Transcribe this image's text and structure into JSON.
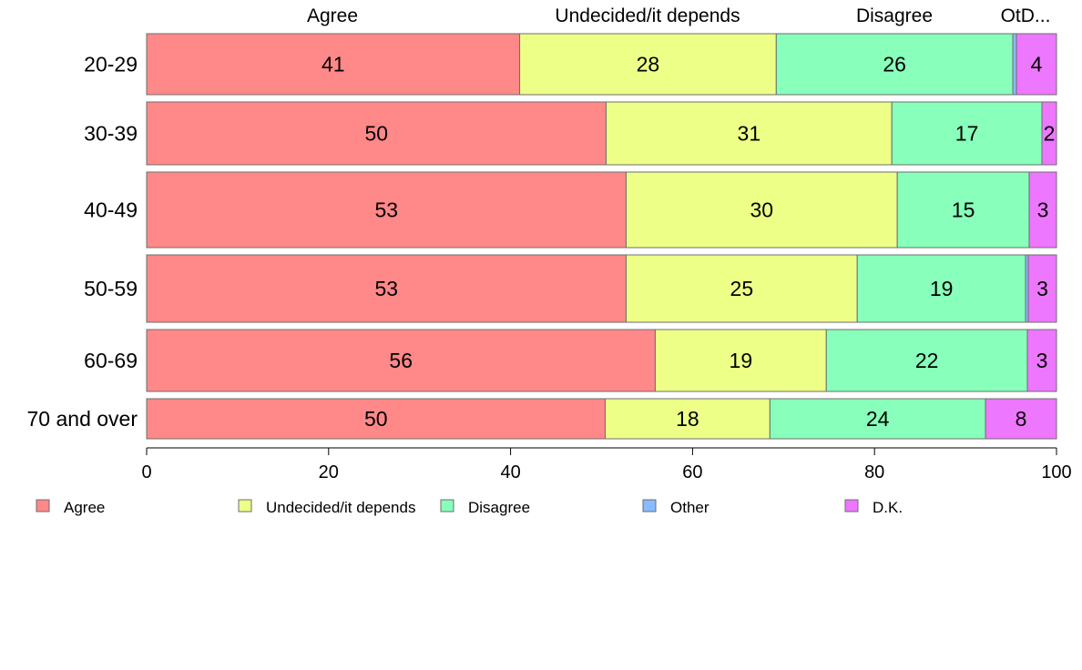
{
  "chart_data": {
    "type": "bar",
    "orientation": "horizontal",
    "stacked": true,
    "categories": [
      "20-29",
      "30-39",
      "40-49",
      "50-59",
      "60-69",
      "70 and over"
    ],
    "series": [
      {
        "name": "Agree",
        "color": "#ff8888",
        "values": [
          41,
          50.5,
          52.7,
          52.7,
          55.9,
          50.4
        ]
      },
      {
        "name": "Undecided/it depends",
        "color": "#eeff88",
        "values": [
          28.2,
          31.4,
          29.8,
          25.4,
          18.8,
          18.1
        ]
      },
      {
        "name": "Disagree",
        "color": "#88ffbb",
        "values": [
          26,
          16.5,
          14.5,
          18.5,
          22.1,
          23.7
        ]
      },
      {
        "name": "Other",
        "color": "#88bbff",
        "values": [
          0.4,
          0,
          0,
          0.3,
          0,
          0
        ]
      },
      {
        "name": "D.K.",
        "color": "#ee77ff",
        "values": [
          4.4,
          1.6,
          3,
          3.1,
          3.2,
          7.8
        ]
      }
    ],
    "data_labels": [
      [
        "41",
        "28",
        "26",
        "",
        "4"
      ],
      [
        "50",
        "31",
        "17",
        "",
        "2"
      ],
      [
        "53",
        "30",
        "15",
        "",
        "3"
      ],
      [
        "53",
        "25",
        "19",
        "",
        "3"
      ],
      [
        "56",
        "19",
        "22",
        "",
        "3"
      ],
      [
        "50",
        "18",
        "24",
        "",
        "8"
      ]
    ],
    "top_labels": [
      "Agree",
      "Undecided/it depends",
      "Disagree",
      "OtD..."
    ],
    "x_ticks": [
      "0",
      "20",
      "40",
      "60",
      "80",
      "100"
    ],
    "xlim": [
      0,
      100
    ],
    "title": "",
    "xlabel": "",
    "ylabel": "",
    "legend_position": "bottom",
    "grid": false
  }
}
